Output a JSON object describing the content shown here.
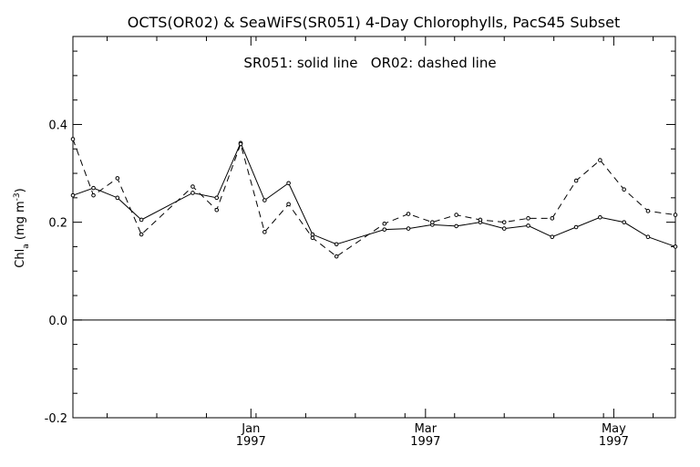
{
  "chart_data": {
    "type": "line",
    "title": "OCTS(OR02) & SeaWiFS(SR051) 4-Day Chlorophylls, PacS45 Subset",
    "legend_note": "SR051: solid line   OR02: dashed line",
    "ylabel_main": "Chl",
    "ylabel_sub": "a",
    "ylabel_units": " (mg m",
    "ylabel_exp": "-3",
    "ylabel_close": ")",
    "ylim": [
      -0.2,
      0.58
    ],
    "xlim": [
      0,
      176
    ],
    "y_ticks": [
      {
        "value": -0.2,
        "label": "-0.2"
      },
      {
        "value": 0.0,
        "label": "0.0"
      },
      {
        "value": 0.2,
        "label": "0.2"
      },
      {
        "value": 0.4,
        "label": "0.4"
      }
    ],
    "x_ticks": [
      {
        "x": 52,
        "month": "Jan",
        "year": "1997"
      },
      {
        "x": 103,
        "month": "Mar",
        "year": "1997"
      },
      {
        "x": 158,
        "month": "May",
        "year": "1997"
      }
    ],
    "zero_line": 0.0,
    "series": [
      {
        "name": "SR051",
        "style": "solid",
        "x": [
          0,
          6,
          13,
          20,
          35,
          42,
          49,
          56,
          63,
          70,
          77,
          91,
          98,
          105,
          112,
          119,
          126,
          133,
          140,
          147,
          154,
          161,
          168,
          176
        ],
        "y": [
          0.255,
          0.27,
          0.25,
          0.205,
          0.26,
          0.25,
          0.362,
          0.245,
          0.28,
          0.175,
          0.155,
          0.185,
          0.187,
          0.195,
          0.192,
          0.2,
          0.187,
          0.193,
          0.17,
          0.19,
          0.21,
          0.2,
          0.17,
          0.15
        ]
      },
      {
        "name": "OR02",
        "style": "dashed",
        "x": [
          0,
          6,
          13,
          20,
          35,
          42,
          49,
          56,
          63,
          70,
          77,
          91,
          98,
          105,
          112,
          119,
          126,
          133,
          140,
          147,
          154,
          161,
          168,
          176
        ],
        "y": [
          0.37,
          0.255,
          0.29,
          0.175,
          0.273,
          0.225,
          0.36,
          0.18,
          0.237,
          0.168,
          0.13,
          0.197,
          0.217,
          0.2,
          0.215,
          0.205,
          0.2,
          0.208,
          0.208,
          0.285,
          0.327,
          0.267,
          0.223,
          0.215
        ]
      }
    ]
  }
}
